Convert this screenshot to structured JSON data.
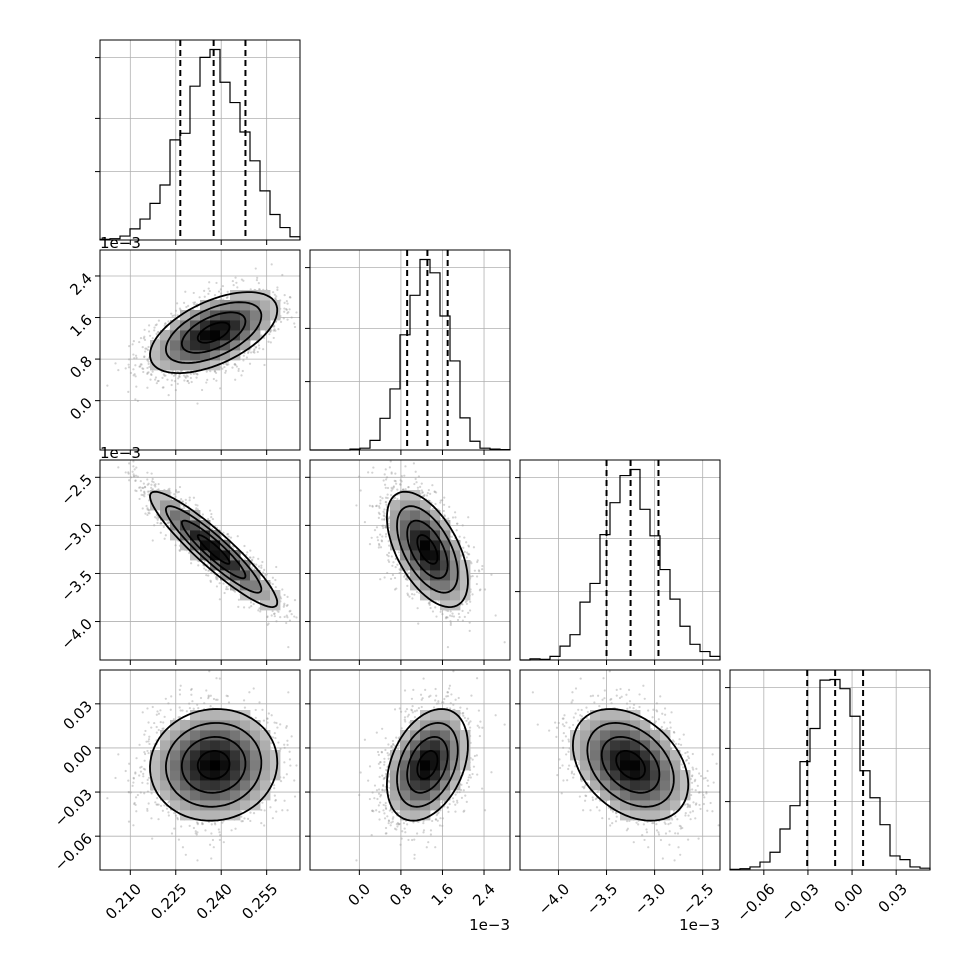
{
  "chart_data": {
    "type": "corner",
    "colors": {
      "line": "#000000",
      "grid": "#b0b0b0",
      "scatter": "#9e9e9e",
      "background": "#ffffff"
    },
    "grid": true,
    "params": [
      {
        "xrange": [
          0.2,
          0.266
        ],
        "ticks": [
          0.21,
          0.225,
          0.24,
          0.255
        ],
        "tick_labels": [
          "0.210",
          "0.225",
          "0.240",
          "0.255"
        ],
        "offset_label": "",
        "mean": 0.2375,
        "sigma": 0.0105,
        "quantiles": [
          0.2265,
          0.2375,
          0.248
        ]
      },
      {
        "xrange": [
          -0.00095,
          0.0029
        ],
        "ticks": [
          0.0,
          0.8,
          1.6,
          2.4
        ],
        "tick_scale": 0.001,
        "tick_labels": [
          "0.0",
          "0.8",
          "1.6",
          "2.4"
        ],
        "offset_label": "1e−3",
        "mean": 0.00131,
        "sigma": 0.00039,
        "quantiles": [
          0.00092,
          0.00131,
          0.0017
        ]
      },
      {
        "xrange": [
          -0.0044,
          -0.00232
        ],
        "ticks": [
          -4.0,
          -3.5,
          -3.0,
          -2.5
        ],
        "tick_scale": 0.001,
        "tick_labels": [
          "−4.0",
          "−3.5",
          "−3.0",
          "−2.5"
        ],
        "offset_label": "1e−3",
        "mean": -0.00325,
        "sigma": 0.0003,
        "quantiles": [
          -0.0035,
          -0.00325,
          -0.00296
        ]
      },
      {
        "xrange": [
          -0.083,
          0.053
        ],
        "ticks": [
          -0.06,
          -0.03,
          0.0,
          0.03
        ],
        "tick_labels": [
          "−0.06",
          "−0.03",
          "0.00",
          "0.03"
        ],
        "offset_label": "",
        "mean": -0.0115,
        "sigma": 0.019,
        "quantiles": [
          -0.0305,
          -0.0115,
          0.0075
        ]
      }
    ],
    "correlations": [
      [
        1.0,
        0.55,
        -0.92,
        0.05
      ],
      [
        0.55,
        1.0,
        -0.55,
        0.35
      ],
      [
        -0.92,
        -0.55,
        1.0,
        -0.35
      ],
      [
        0.05,
        0.35,
        -0.35,
        1.0
      ]
    ],
    "contour_levels_sigma": [
      0.5,
      1.0,
      1.5,
      2.0
    ]
  }
}
